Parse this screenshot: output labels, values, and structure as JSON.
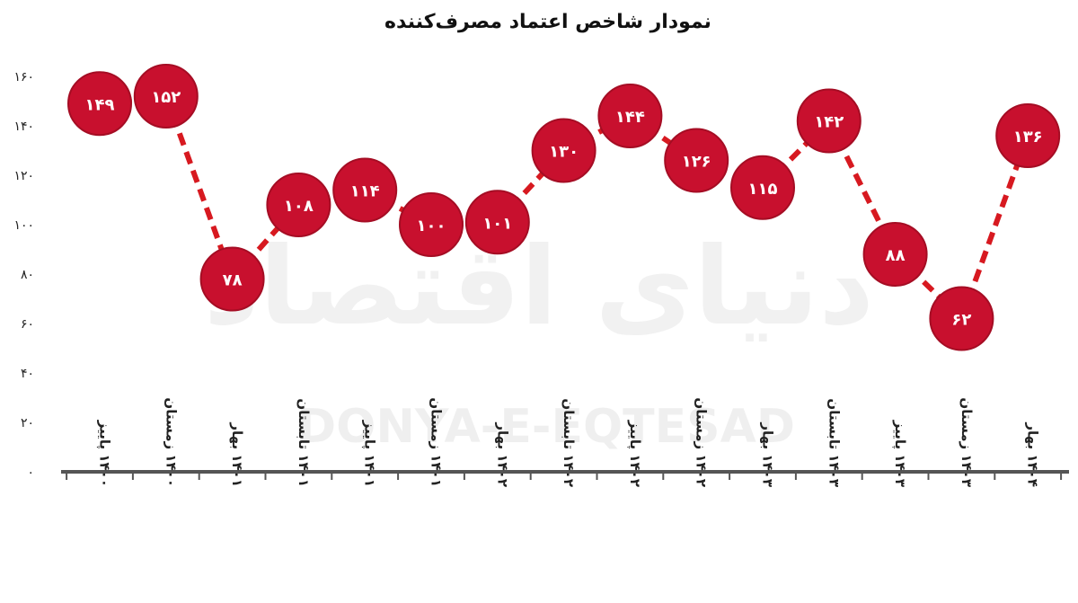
{
  "watermark": {
    "latin": "DONYA-E-EQTESAD",
    "persian": "دنیای اقتصاد"
  },
  "colors": {
    "marker": "#c8102e",
    "marker_stroke": "#a50d24",
    "line": "#d71920",
    "axis": "#555555"
  },
  "chart_data": {
    "type": "line",
    "title": "نمودار شاخص اعتماد مصرف‌کننده",
    "xlabel": "",
    "ylabel": "",
    "ylim": [
      0,
      160
    ],
    "yticks": [
      0,
      20,
      40,
      60,
      80,
      100,
      120,
      140,
      160
    ],
    "ytick_labels": [
      "۰",
      "۲۰",
      "۴۰",
      "۶۰",
      "۸۰",
      "۱۰۰",
      "۱۲۰",
      "۱۴۰",
      "۱۶۰"
    ],
    "grid": false,
    "legend": "none",
    "categories": [
      "۱۴۰۰ پاییز",
      "۱۴۰۰ زمستان",
      "۱۴۰۱ بهار",
      "۱۴۰۱ تابستان",
      "۱۴۰۱ پاییز",
      "۱۴۰۱ زمستان",
      "۱۴۰۲ بهار",
      "۱۴۰۲ تابستان",
      "۱۴۰۲ پاییز",
      "۱۴۰۲ زمستان",
      "۱۴۰۳ بهار",
      "۱۴۰۳ تابستان",
      "۱۴۰۳ پاییز",
      "۱۴۰۳ زمستان",
      "۱۴۰۴ بهار"
    ],
    "series": [
      {
        "values": [
          149,
          152,
          78,
          108,
          114,
          100,
          101,
          130,
          144,
          126,
          115,
          142,
          88,
          62,
          136
        ],
        "data_labels": [
          "۱۴۹",
          "۱۵۲",
          "۷۸",
          "۱۰۸",
          "۱۱۴",
          "۱۰۰",
          "۱۰۱",
          "۱۳۰",
          "۱۴۴",
          "۱۲۶",
          "۱۱۵",
          "۱۴۲",
          "۸۸",
          "۶۲",
          "۱۳۶"
        ]
      }
    ]
  }
}
